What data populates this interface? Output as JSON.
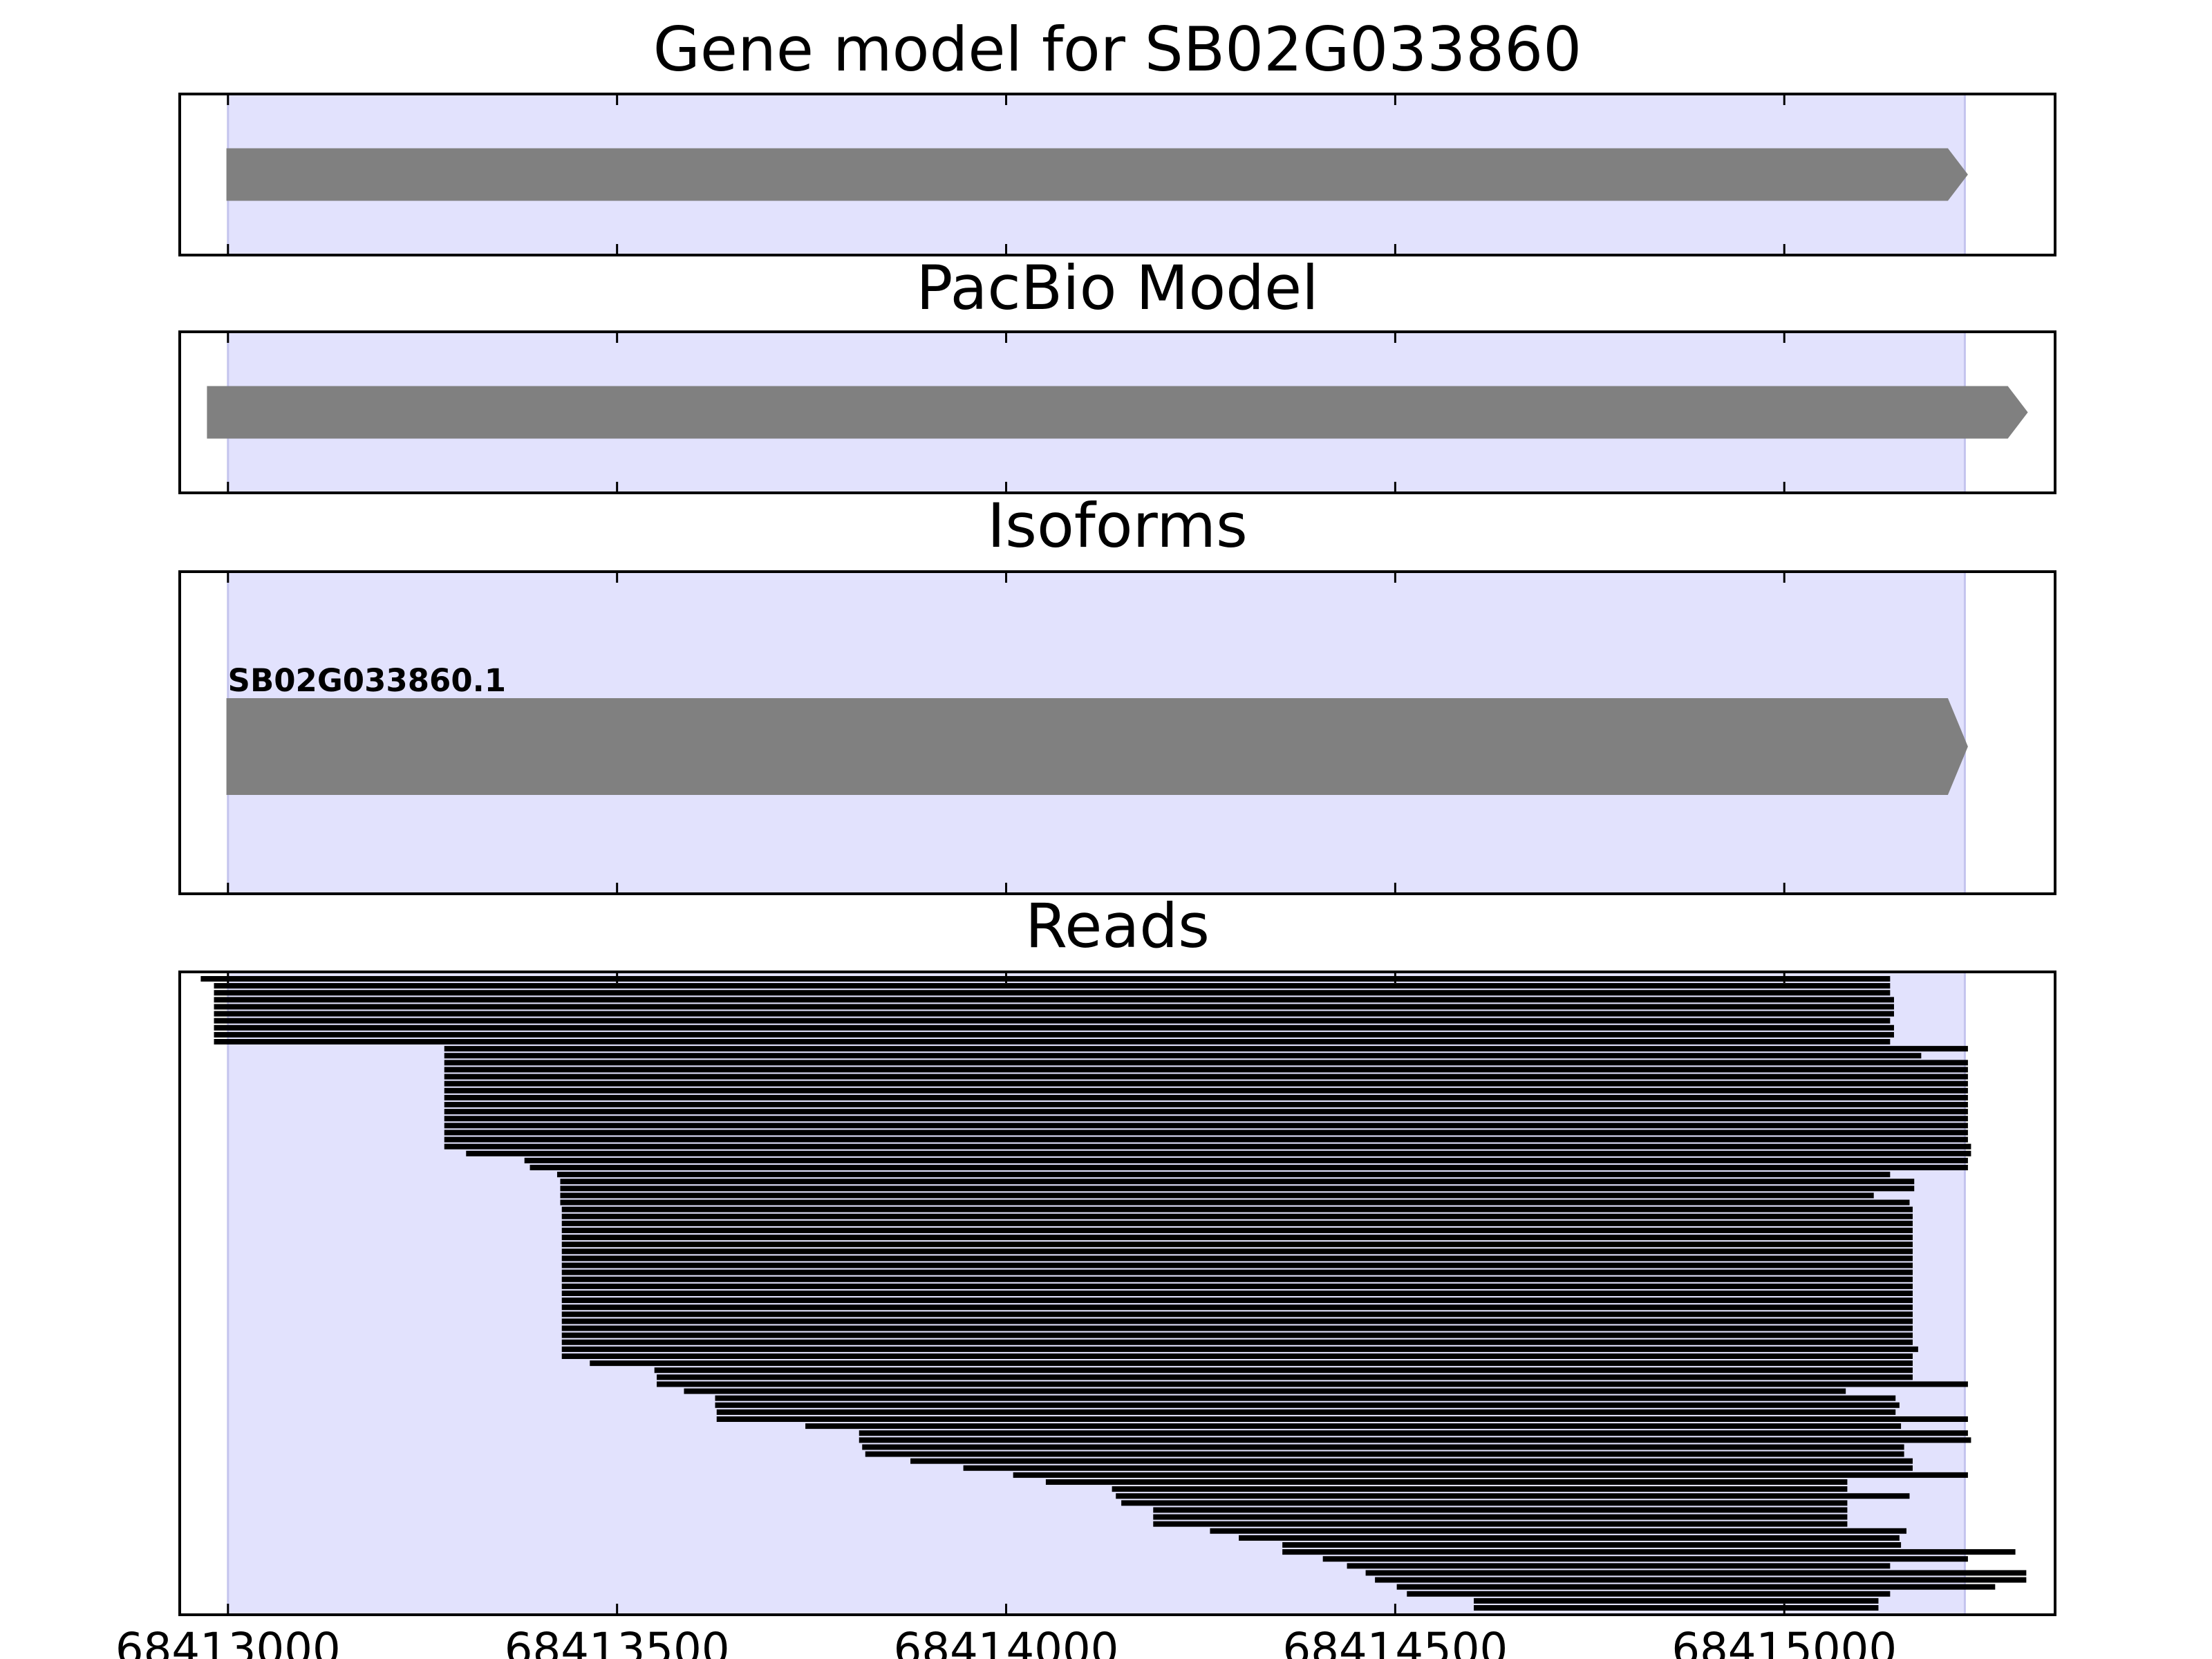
{
  "chart_data": [
    {
      "type": "gene",
      "title": "Gene model for SB02G033860",
      "xlim": [
        68412938,
        68415348
      ],
      "xticks": [
        68413000,
        68413500,
        68414000,
        68414500,
        68415000
      ],
      "tick_labels": false,
      "highlight": [
        68413000,
        68415232
      ],
      "highlight_color": "#e2e2fd",
      "color": "#808080",
      "features": [
        {
          "start": 68412998,
          "end": 68415236
        }
      ]
    },
    {
      "type": "gene",
      "title": "PacBio Model",
      "xlim": [
        68412938,
        68415348
      ],
      "xticks": [
        68413000,
        68413500,
        68414000,
        68414500,
        68415000
      ],
      "tick_labels": false,
      "highlight": [
        68413000,
        68415232
      ],
      "highlight_color": "#e2e2fd",
      "color": "#808080",
      "features": [
        {
          "start": 68412973,
          "end": 68415313
        }
      ]
    },
    {
      "type": "isoform",
      "title": "Isoforms",
      "xlim": [
        68412938,
        68415348
      ],
      "xticks": [
        68413000,
        68413500,
        68414000,
        68414500,
        68415000
      ],
      "tick_labels": false,
      "highlight": [
        68413000,
        68415232
      ],
      "highlight_color": "#e2e2fd",
      "color": "#808080",
      "features": [
        {
          "name": "SB02G033860.1",
          "start": 68412998,
          "end": 68415236
        }
      ]
    },
    {
      "type": "reads",
      "title": "Reads",
      "xlim": [
        68412938,
        68415348
      ],
      "xticks": [
        68413000,
        68413500,
        68414000,
        68414500,
        68415000
      ],
      "tick_labels": true,
      "highlight": [
        68413000,
        68415232
      ],
      "highlight_color": "#e2e2fd",
      "color": "#000000",
      "starts": [
        68412965,
        68412982,
        68412982,
        68412982,
        68412982,
        68412982,
        68412982,
        68412982,
        68412982,
        68412982,
        68413278,
        68413278,
        68413278,
        68413278,
        68413278,
        68413278,
        68413278,
        68413278,
        68413278,
        68413278,
        68413278,
        68413278,
        68413278,
        68413278,
        68413278,
        68413306,
        68413381,
        68413388,
        68413423,
        68413427,
        68413427,
        68413427,
        68413427,
        68413429,
        68413429,
        68413429,
        68413429,
        68413429,
        68413429,
        68413429,
        68413429,
        68413429,
        68413429,
        68413429,
        68413429,
        68413429,
        68413429,
        68413429,
        68413429,
        68413429,
        68413429,
        68413429,
        68413429,
        68413429,
        68413429,
        68413465,
        68413548,
        68413551,
        68413551,
        68413586,
        68413626,
        68413626,
        68413628,
        68413628,
        68413742,
        68413811,
        68413811,
        68413815,
        68413819,
        68413877,
        68413945,
        68414009,
        68414051,
        68414136,
        68414141,
        68414148,
        68414189,
        68414189,
        68414189,
        68414262,
        68414299,
        68414355,
        68414355,
        68414407,
        68414438,
        68414462,
        68414474,
        68414502,
        68414515,
        68414601,
        68414601
      ],
      "ends": [
        68415136,
        68415136,
        68415136,
        68415141,
        68415141,
        68415141,
        68415136,
        68415141,
        68415141,
        68415136,
        68415236,
        68415176,
        68415236,
        68415236,
        68415236,
        68415236,
        68415236,
        68415236,
        68415236,
        68415236,
        68415236,
        68415236,
        68415236,
        68415236,
        68415240,
        68415240,
        68415236,
        68415236,
        68415136,
        68415167,
        68415167,
        68415115,
        68415161,
        68415165,
        68415165,
        68415165,
        68415165,
        68415165,
        68415165,
        68415165,
        68415165,
        68415165,
        68415165,
        68415165,
        68415165,
        68415165,
        68415165,
        68415165,
        68415165,
        68415165,
        68415165,
        68415165,
        68415165,
        68415172,
        68415165,
        68415165,
        68415165,
        68415165,
        68415236,
        68415079,
        68415143,
        68415148,
        68415143,
        68415236,
        68415150,
        68415236,
        68415240,
        68415154,
        68415154,
        68415165,
        68415165,
        68415236,
        68415081,
        68415081,
        68415161,
        68415081,
        68415081,
        68415081,
        68415081,
        68415157,
        68415148,
        68415150,
        68415297,
        68415236,
        68415136,
        68415311,
        68415311,
        68415271,
        68415136,
        68415121,
        68415121
      ]
    }
  ]
}
